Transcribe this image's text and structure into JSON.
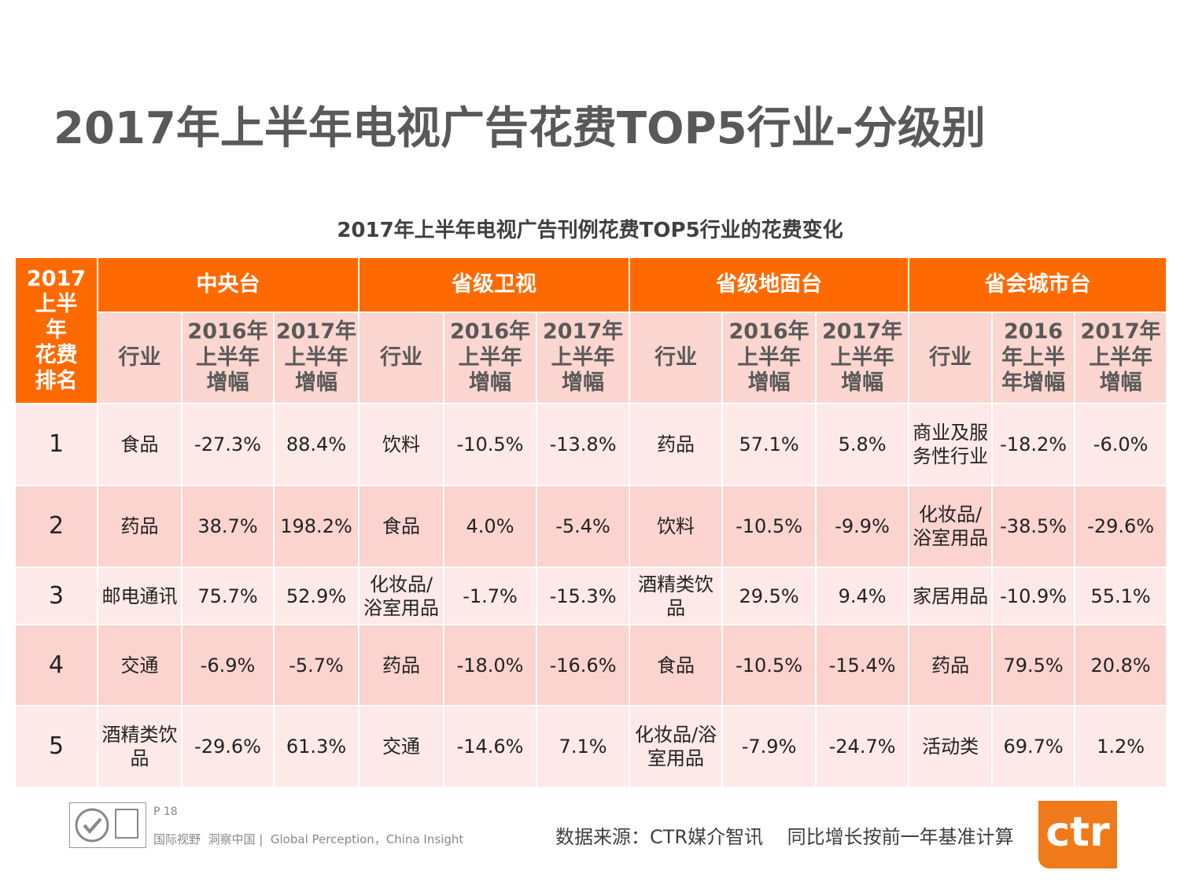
{
  "title": "2017年上半年电视广告花费TOP5行业-分级别",
  "table": {
    "title": "2017年上半年电视广告刊例花费TOP5行业的花费变化",
    "rank_header": "2017\n上半\n年\n花费\n排名",
    "groups": [
      {
        "name": "中央台",
        "columns": [
          "行业",
          "2016年\n上半年\n增幅",
          "2017年\n上半年\n增幅"
        ]
      },
      {
        "name": "省级卫视",
        "columns": [
          "行业",
          "2016年\n上半年\n增幅",
          "2017年\n上半年\n增幅"
        ]
      },
      {
        "name": "省级地面台",
        "columns": [
          "行业",
          "2016年\n上半年\n增幅",
          "2017年\n上半年\n增幅"
        ]
      },
      {
        "name": "省会城市台",
        "columns": [
          "行业",
          "2016\n年上半\n年增幅",
          "2017年\n上半年\n增幅"
        ]
      }
    ],
    "rows": [
      {
        "rank": "1",
        "cells": [
          "食品",
          "-27.3%",
          "88.4%",
          "饮料",
          "-10.5%",
          "-13.8%",
          "药品",
          "57.1%",
          "5.8%",
          "商业及服\n务性行业",
          "-18.2%",
          "-6.0%"
        ]
      },
      {
        "rank": "2",
        "cells": [
          "药品",
          "38.7%",
          "198.2%",
          "食品",
          "4.0%",
          "-5.4%",
          "饮料",
          "-10.5%",
          "-9.9%",
          "化妆品/\n浴室用品",
          "-38.5%",
          "-29.6%"
        ]
      },
      {
        "rank": "3",
        "cells": [
          "邮电通讯",
          "75.7%",
          "52.9%",
          "化妆品/\n浴室用品",
          "-1.7%",
          "-15.3%",
          "酒精类饮\n品",
          "29.5%",
          "9.4%",
          "家居用品",
          "-10.9%",
          "55.1%"
        ]
      },
      {
        "rank": "4",
        "cells": [
          "交通",
          "-6.9%",
          "-5.7%",
          "药品",
          "-18.0%",
          "-16.6%",
          "食品",
          "-10.5%",
          "-15.4%",
          "药品",
          "79.5%",
          "20.8%"
        ]
      },
      {
        "rank": "5",
        "cells": [
          "酒精类饮\n品",
          "-29.6%",
          "61.3%",
          "交通",
          "-14.6%",
          "7.1%",
          "化妆品/浴\n室用品",
          "-7.9%",
          "-24.7%",
          "活动类",
          "69.7%",
          "1.2%"
        ]
      }
    ]
  },
  "footer": {
    "page": "P 18",
    "slogan": "国际视野  洞察中国 |  Global Perception，China Insight",
    "source": "数据来源：CTR媒介智讯    同比增长按前一年基准计算",
    "logo": "ctr"
  }
}
